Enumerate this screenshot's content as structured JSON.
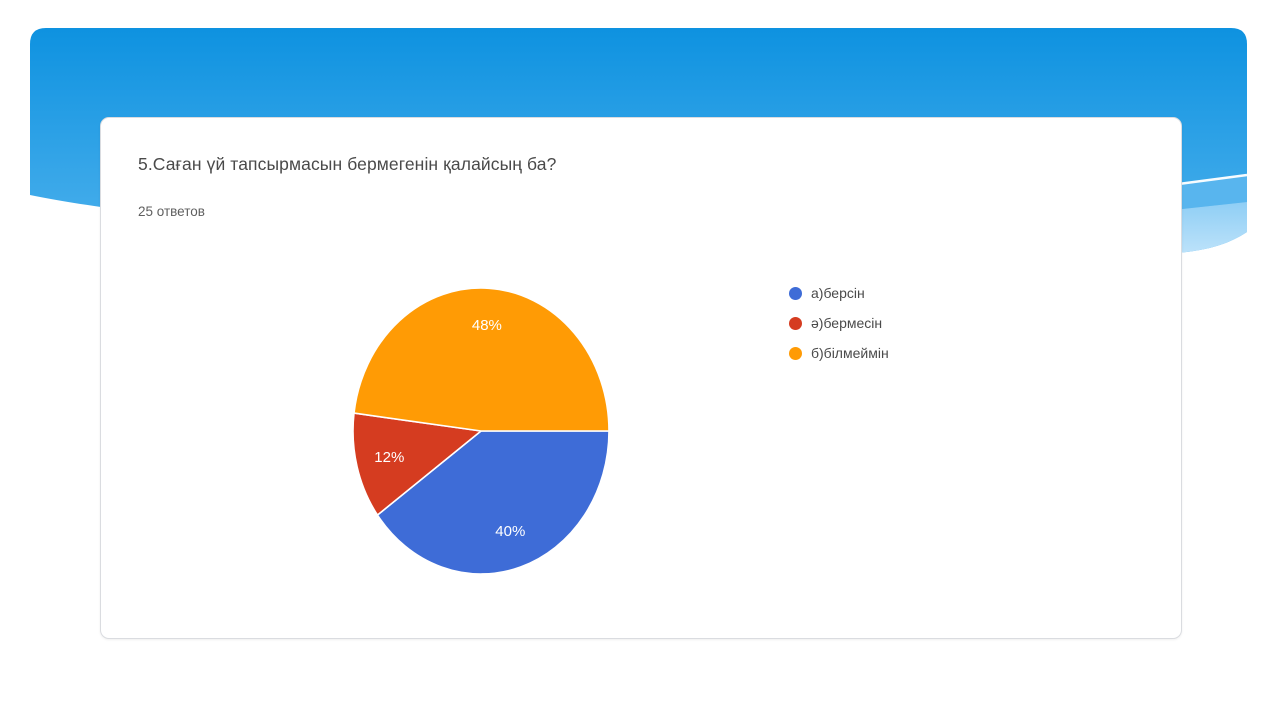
{
  "slide": {
    "type": "presentation-slide-with-embedded-google-forms-result"
  },
  "card": {
    "question_title": "5.Саған үй тапсырмасын бермегенін қалайсың ба?",
    "responses_count": "25 ответов"
  },
  "chart_data": {
    "type": "pie",
    "title": "5.Саған үй тапсырмасын бермегенін қалайсың ба?",
    "subtitle": "25 ответов",
    "total_responses": 25,
    "start_angle_deg": 0,
    "direction": "clockwise",
    "legend_position": "right",
    "slices": [
      {
        "label": "а)берсін",
        "value": 10,
        "percent": "40%",
        "color": "#3E6CD7"
      },
      {
        "label": "ә)бермесін",
        "value": 3,
        "percent": "12%",
        "color": "#D53C20"
      },
      {
        "label": "б)білмеймін",
        "value": 12,
        "percent": "48%",
        "color": "#FF9B05"
      }
    ],
    "label_color": "#FFFFFF"
  },
  "theme": {
    "banner_gradient_top": "#0E92E0",
    "banner_gradient_bottom": "#4FB2ED",
    "banner_band_mid": "#58B5EE",
    "banner_band_light_top": "#8FCEF5",
    "banner_band_light_bottom": "#BCE2FA",
    "banner_line_color": "#F7FCFF",
    "card_border": "#DADCE0",
    "title_color": "#4A4A4A",
    "subtitle_color": "#5F5F5F",
    "legend_text_color": "#4A4A4A"
  }
}
